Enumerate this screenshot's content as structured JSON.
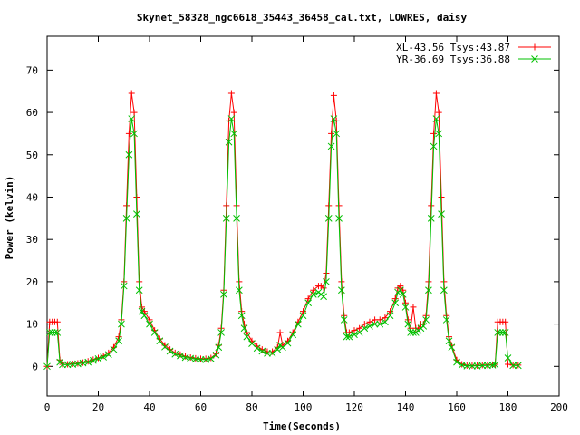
{
  "chart_data": {
    "type": "line",
    "title": "Skynet_58328_ngc6618_35443_36458_cal.txt, LOWRES, daisy",
    "xlabel": "Time(Seconds)",
    "ylabel": "Power (kelvin)",
    "xlim": [
      0,
      200
    ],
    "ylim": [
      -7,
      78
    ],
    "xticks": [
      0,
      20,
      40,
      60,
      80,
      100,
      120,
      140,
      160,
      180,
      200
    ],
    "yticks": [
      0,
      10,
      20,
      30,
      40,
      50,
      60,
      70
    ],
    "legend_position": "top-right",
    "grid": false,
    "series": [
      {
        "name": "XL-43.56 Tsys:43.87",
        "color": "#ff0000",
        "marker": "plus",
        "x": [
          0,
          1,
          2,
          3,
          4,
          5,
          6,
          8,
          10,
          12,
          14,
          16,
          18,
          20,
          22,
          24,
          26,
          28,
          29,
          30,
          31,
          32,
          33,
          34,
          35,
          36,
          37,
          38,
          40,
          42,
          44,
          46,
          48,
          50,
          52,
          54,
          56,
          58,
          60,
          62,
          64,
          66,
          67,
          68,
          69,
          70,
          71,
          72,
          73,
          74,
          75,
          76,
          77,
          78,
          80,
          82,
          84,
          86,
          88,
          90,
          91,
          92,
          94,
          96,
          98,
          100,
          102,
          104,
          106,
          107,
          108,
          109,
          110,
          111,
          112,
          113,
          114,
          115,
          116,
          117,
          118,
          120,
          122,
          124,
          126,
          128,
          130,
          132,
          134,
          136,
          137,
          138,
          139,
          140,
          141,
          142,
          143,
          144,
          145,
          146,
          147,
          148,
          149,
          150,
          151,
          152,
          153,
          154,
          155,
          156,
          157,
          158,
          160,
          162,
          164,
          166,
          168,
          170,
          172,
          174,
          175,
          176,
          177,
          178,
          179,
          180,
          182,
          184
        ],
        "y": [
          0,
          10.5,
          10.5,
          10.5,
          10.5,
          1.5,
          0.5,
          0.5,
          0.6,
          0.7,
          0.9,
          1.2,
          1.6,
          2,
          2.5,
          3.2,
          4.5,
          7,
          11,
          20,
          38,
          55,
          64.5,
          60,
          40,
          20,
          14,
          13,
          11,
          8.5,
          6.5,
          5,
          4,
          3.2,
          2.8,
          2.4,
          2.1,
          1.9,
          1.8,
          1.8,
          2,
          3,
          5,
          9,
          18,
          38,
          58,
          64.5,
          60,
          38,
          20,
          13,
          10,
          8,
          6,
          4.8,
          4,
          3.5,
          3.5,
          4.5,
          8,
          5,
          6,
          8,
          10.5,
          13,
          16,
          18,
          19,
          19,
          18.5,
          22,
          38,
          55,
          64,
          58,
          38,
          20,
          12,
          8,
          8,
          8.5,
          9,
          10,
          10.5,
          11,
          11,
          11.5,
          13,
          16,
          18.5,
          19,
          18,
          15,
          11,
          9,
          14,
          9,
          9,
          10,
          10,
          12,
          20,
          38,
          55,
          64.5,
          60,
          40,
          20,
          12,
          7,
          5,
          1.5,
          0.5,
          0.2,
          0.2,
          0.2,
          0.3,
          0.3,
          0.4,
          0.5,
          10.5,
          10.5,
          10.5,
          10.5,
          0.5,
          0.3,
          0.3
        ]
      },
      {
        "name": "YR-36.69 Tsys:36.88",
        "color": "#00c000",
        "marker": "cross",
        "x": [
          0,
          1,
          2,
          3,
          4,
          5,
          6,
          8,
          10,
          12,
          14,
          16,
          18,
          20,
          22,
          24,
          26,
          28,
          29,
          30,
          31,
          32,
          33,
          34,
          35,
          36,
          37,
          38,
          40,
          42,
          44,
          46,
          48,
          50,
          52,
          54,
          56,
          58,
          60,
          62,
          64,
          66,
          67,
          68,
          69,
          70,
          71,
          72,
          73,
          74,
          75,
          76,
          77,
          78,
          80,
          82,
          84,
          86,
          88,
          90,
          91,
          92,
          94,
          96,
          98,
          100,
          102,
          104,
          106,
          107,
          108,
          109,
          110,
          111,
          112,
          113,
          114,
          115,
          116,
          117,
          118,
          120,
          122,
          124,
          126,
          128,
          130,
          132,
          134,
          136,
          137,
          138,
          139,
          140,
          141,
          142,
          143,
          144,
          145,
          146,
          147,
          148,
          149,
          150,
          151,
          152,
          153,
          154,
          155,
          156,
          157,
          158,
          160,
          162,
          164,
          166,
          168,
          170,
          172,
          174,
          175,
          176,
          177,
          178,
          179,
          180,
          182,
          184
        ],
        "y": [
          0,
          8,
          8,
          8,
          8,
          1,
          0.4,
          0.4,
          0.5,
          0.6,
          0.8,
          1,
          1.4,
          1.8,
          2.2,
          2.8,
          4,
          6,
          10,
          19,
          35,
          50,
          58.5,
          55,
          36,
          18,
          13,
          12,
          10,
          8,
          6,
          4.6,
          3.6,
          2.9,
          2.5,
          2.1,
          1.9,
          1.7,
          1.6,
          1.6,
          1.8,
          2.7,
          4.5,
          8,
          17,
          35,
          53,
          58.5,
          55,
          35,
          18,
          12,
          9,
          7,
          5.4,
          4.3,
          3.6,
          3.1,
          3.1,
          4,
          5,
          4.5,
          5.5,
          7.5,
          10,
          12,
          15,
          17,
          17.5,
          17,
          16.5,
          20,
          35,
          52,
          58.5,
          55,
          35,
          18,
          11,
          7,
          7,
          7.5,
          8,
          9,
          9.5,
          10,
          10,
          10.5,
          12,
          15,
          17.5,
          18,
          17,
          14,
          10,
          8,
          8,
          8,
          8.5,
          9,
          9.5,
          11,
          18,
          35,
          52,
          58.5,
          55,
          36,
          18,
          11,
          6,
          4.5,
          1,
          0.3,
          0.1,
          0.1,
          0.1,
          0.2,
          0.2,
          0.3,
          0.4,
          8,
          8,
          8,
          8,
          2,
          0.2,
          0.2
        ]
      }
    ]
  }
}
